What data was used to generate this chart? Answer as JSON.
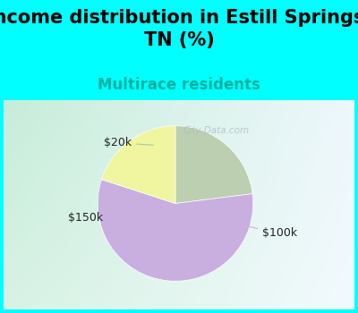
{
  "title": "Income distribution in Estill Springs,\nTN (%)",
  "subtitle": "Multirace residents",
  "title_fontsize": 15,
  "subtitle_fontsize": 12,
  "subtitle_color": "#00b0a0",
  "background_color": "#00ffff",
  "chart_bg_left": "#c8ecd8",
  "chart_bg_right": "#eaf4f8",
  "slices": [
    {
      "label": "$100k",
      "value": 57,
      "color": "#c9aee0"
    },
    {
      "label": "$20k",
      "value": 20,
      "color": "#f0f5a0"
    },
    {
      "label": "$150k",
      "value": 23,
      "color": "#bccfb0"
    }
  ],
  "start_angle": 90,
  "watermark": "City-Data.com",
  "watermark_color": "#b0b8c0",
  "label_fontsize": 9,
  "label_color": "#222222"
}
